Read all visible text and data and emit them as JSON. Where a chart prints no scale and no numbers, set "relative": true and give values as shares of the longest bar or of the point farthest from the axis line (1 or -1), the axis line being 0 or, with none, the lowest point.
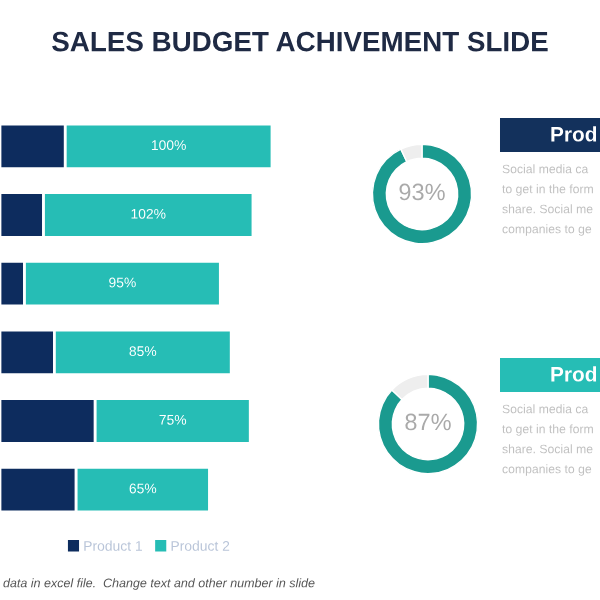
{
  "chart_data": [
    {
      "type": "bar",
      "title": "SALES BUDGET ACHIVEMENT SLIDE",
      "orientation": "horizontal",
      "stacked": true,
      "relative": true,
      "categories": [
        null,
        null,
        null,
        null,
        null,
        null
      ],
      "series": [
        {
          "name": "Product 1",
          "color": "#0d2c5e",
          "values": [
            0.24,
            0.16,
            0.09,
            0.2,
            0.35,
            0.28
          ]
        },
        {
          "name": "Product 2",
          "color": "#26bdb5",
          "values": [
            0.76,
            0.77,
            0.72,
            0.65,
            0.57,
            0.49
          ]
        }
      ],
      "legend": "bottom",
      "annotations": [
        "100%",
        "102%",
        "95%",
        "85%",
        "75%",
        "65%",
        "data in excel file.  Change text and other number in slide"
      ]
    },
    {
      "type": "donut",
      "categories": [
        null,
        null
      ],
      "values": [
        93,
        7
      ],
      "colors": [
        "#1a9a8f",
        "#eeeeee"
      ],
      "annotations": [
        "93%"
      ]
    },
    {
      "type": "other",
      "title": "Prod",
      "color": "#13315c",
      "annotations": [
        "Social media ca",
        "to get in the form",
        "share. Social me",
        "companies to ge"
      ]
    },
    {
      "type": "donut",
      "categories": [
        null,
        null
      ],
      "values": [
        87,
        13
      ],
      "colors": [
        "#1a9a8f",
        "#eeeeee"
      ],
      "annotations": [
        "87%"
      ]
    },
    {
      "type": "other",
      "title": "Prod",
      "color": "#26bdb5",
      "annotations": [
        "Social media ca",
        "to get in the form",
        "share. Social me",
        "companies to ge"
      ]
    }
  ]
}
